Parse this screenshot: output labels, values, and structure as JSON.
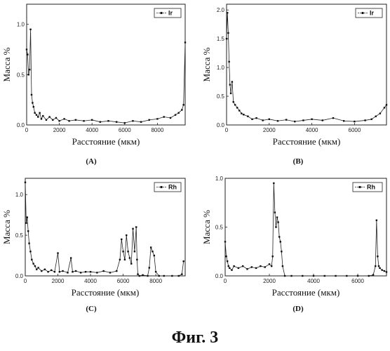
{
  "figure_caption": "Фиг. 3",
  "chart_data": [
    {
      "id": "A",
      "type": "line",
      "caption": "(A)",
      "xlabel": "Расстояние (мкм)",
      "ylabel": "Масса %",
      "xlim": [
        0,
        9700
      ],
      "ylim": [
        0,
        1.2
      ],
      "xticks": [
        0,
        2000,
        4000,
        6000,
        8000
      ],
      "yticks": [
        0.0,
        0.5,
        1.0
      ],
      "ytick_labels": [
        "0.0",
        "0.5",
        "1.0"
      ],
      "legend": "top-right",
      "series": [
        {
          "name": "Ir",
          "x": [
            0,
            60,
            120,
            180,
            240,
            300,
            360,
            420,
            500,
            600,
            700,
            800,
            900,
            1000,
            1200,
            1400,
            1600,
            1800,
            2000,
            2300,
            2600,
            3000,
            3500,
            4000,
            4500,
            5000,
            5500,
            6000,
            6500,
            7000,
            7500,
            8000,
            8400,
            8800,
            9100,
            9300,
            9500,
            9600,
            9700
          ],
          "y": [
            0.75,
            0.7,
            0.5,
            0.55,
            0.95,
            0.3,
            0.22,
            0.18,
            0.12,
            0.1,
            0.08,
            0.12,
            0.06,
            0.09,
            0.05,
            0.08,
            0.05,
            0.07,
            0.04,
            0.06,
            0.04,
            0.05,
            0.04,
            0.05,
            0.03,
            0.04,
            0.03,
            0.02,
            0.04,
            0.03,
            0.05,
            0.06,
            0.08,
            0.07,
            0.1,
            0.12,
            0.15,
            0.2,
            0.82
          ]
        }
      ]
    },
    {
      "id": "B",
      "type": "line",
      "caption": "(B)",
      "xlabel": "Расстояние (мкм)",
      "ylabel": "Масса %",
      "xlim": [
        0,
        7500
      ],
      "ylim": [
        0,
        2.1
      ],
      "xticks": [
        0,
        2000,
        4000,
        6000
      ],
      "yticks": [
        0.0,
        0.5,
        1.0,
        1.5,
        2.0
      ],
      "ytick_labels": [
        "0.0",
        "0.5",
        "1.0",
        "1.5",
        "2.0"
      ],
      "legend": "top-right",
      "series": [
        {
          "name": "Ir",
          "x": [
            0,
            40,
            80,
            120,
            160,
            200,
            260,
            320,
            400,
            500,
            600,
            700,
            800,
            1000,
            1200,
            1400,
            1700,
            2000,
            2400,
            2800,
            3200,
            3600,
            4000,
            4500,
            5000,
            5500,
            6000,
            6500,
            6800,
            7000,
            7200,
            7400,
            7500
          ],
          "y": [
            1.5,
            1.95,
            1.6,
            1.1,
            0.7,
            0.55,
            0.75,
            0.4,
            0.35,
            0.3,
            0.25,
            0.2,
            0.18,
            0.15,
            0.1,
            0.12,
            0.08,
            0.1,
            0.07,
            0.09,
            0.06,
            0.08,
            0.1,
            0.08,
            0.12,
            0.07,
            0.06,
            0.08,
            0.1,
            0.15,
            0.2,
            0.3,
            0.35
          ]
        }
      ]
    },
    {
      "id": "C",
      "type": "line",
      "caption": "(C)",
      "xlabel": "Расстояние (мкм)",
      "ylabel": "Масса %",
      "xlim": [
        0,
        9800
      ],
      "ylim": [
        0,
        1.2
      ],
      "xticks": [
        0,
        2000,
        4000,
        6000,
        8000
      ],
      "yticks": [
        0.0,
        0.5,
        1.0
      ],
      "ytick_labels": [
        "0.0",
        "0.5",
        "1.0"
      ],
      "legend": "top-right",
      "series": [
        {
          "name": "Rh",
          "x": [
            0,
            60,
            120,
            180,
            240,
            320,
            400,
            500,
            600,
            700,
            800,
            1000,
            1200,
            1400,
            1600,
            1800,
            2000,
            2100,
            2300,
            2600,
            2800,
            2900,
            3100,
            3400,
            3700,
            4000,
            4400,
            4800,
            5200,
            5600,
            5800,
            5900,
            6000,
            6100,
            6200,
            6300,
            6400,
            6500,
            6600,
            6700,
            6800,
            6850,
            6900,
            7000,
            7200,
            7500,
            7600,
            7700,
            7800,
            7900,
            8000,
            8200,
            8500,
            9000,
            9400,
            9600,
            9700
          ],
          "y": [
            1.15,
            0.65,
            0.72,
            0.55,
            0.4,
            0.3,
            0.2,
            0.15,
            0.12,
            0.08,
            0.1,
            0.06,
            0.08,
            0.05,
            0.07,
            0.05,
            0.28,
            0.05,
            0.06,
            0.04,
            0.22,
            0.05,
            0.06,
            0.04,
            0.05,
            0.05,
            0.04,
            0.06,
            0.04,
            0.06,
            0.2,
            0.45,
            0.3,
            0.2,
            0.5,
            0.3,
            0.22,
            0.15,
            0.58,
            0.3,
            0.6,
            0.2,
            0.02,
            0.0,
            0.01,
            0.0,
            0.1,
            0.35,
            0.3,
            0.25,
            0.05,
            0.0,
            0.0,
            0.0,
            0.0,
            0.02,
            0.18
          ]
        }
      ]
    },
    {
      "id": "D",
      "type": "line",
      "caption": "(D)",
      "xlabel": "Расстояние (мкм)",
      "ylabel": "Масса %",
      "xlim": [
        0,
        7300
      ],
      "ylim": [
        0,
        1.0
      ],
      "xticks": [
        0,
        2000,
        4000,
        6000
      ],
      "yticks": [
        0.0,
        0.5,
        1.0
      ],
      "ytick_labels": [
        "0.0",
        "0.5",
        "1.0"
      ],
      "legend": "top-right",
      "series": [
        {
          "name": "Rh",
          "x": [
            0,
            50,
            100,
            150,
            200,
            300,
            400,
            600,
            800,
            1000,
            1200,
            1400,
            1600,
            1800,
            2000,
            2100,
            2150,
            2200,
            2250,
            2300,
            2350,
            2400,
            2450,
            2500,
            2550,
            2600,
            2700,
            3000,
            3500,
            4000,
            4500,
            5000,
            5500,
            6000,
            6500,
            6700,
            6800,
            6850,
            6900,
            6950,
            7000,
            7100,
            7200,
            7300
          ],
          "y": [
            0.35,
            0.2,
            0.15,
            0.1,
            0.08,
            0.06,
            0.1,
            0.08,
            0.1,
            0.07,
            0.09,
            0.08,
            0.1,
            0.09,
            0.12,
            0.1,
            0.2,
            0.95,
            0.65,
            0.5,
            0.6,
            0.55,
            0.4,
            0.35,
            0.25,
            0.1,
            0.0,
            0.0,
            0.0,
            0.0,
            0.0,
            0.0,
            0.0,
            0.0,
            0.0,
            0.01,
            0.1,
            0.57,
            0.2,
            0.1,
            0.08,
            0.06,
            0.05,
            0.04
          ]
        }
      ]
    }
  ]
}
